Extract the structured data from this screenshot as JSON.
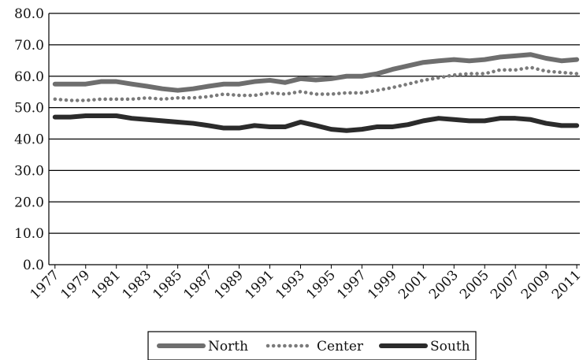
{
  "chart_data": {
    "type": "line",
    "x": [
      1977,
      1978,
      1979,
      1980,
      1981,
      1982,
      1983,
      1984,
      1985,
      1986,
      1987,
      1988,
      1989,
      1990,
      1991,
      1992,
      1993,
      1994,
      1995,
      1996,
      1997,
      1998,
      1999,
      2000,
      2001,
      2002,
      2003,
      2004,
      2005,
      2006,
      2007,
      2008,
      2009,
      2010,
      2011
    ],
    "series": [
      {
        "name": "North",
        "color": "#6e6e6e",
        "style": "solid",
        "values": [
          57.5,
          57.5,
          57.5,
          58.3,
          58.3,
          57.5,
          56.8,
          56,
          55.5,
          56,
          56.8,
          57.5,
          57.5,
          58.3,
          58.7,
          58,
          59.2,
          58.8,
          59.2,
          60,
          60,
          60.8,
          62.2,
          63.3,
          64.4,
          64.9,
          65.3,
          64.9,
          65.3,
          66.1,
          66.5,
          66.9,
          65.7,
          64.9,
          65.3
        ]
      },
      {
        "name": "Center",
        "color": "#7a7a7a",
        "style": "dotted",
        "values": [
          52.7,
          52.3,
          52.3,
          52.7,
          52.7,
          52.7,
          53.1,
          52.7,
          53.1,
          53.1,
          53.5,
          54.3,
          53.9,
          53.9,
          54.7,
          54.3,
          55.1,
          54.3,
          54.3,
          54.7,
          54.7,
          55.5,
          56.4,
          57.5,
          58.7,
          59.5,
          60.4,
          60.8,
          60.8,
          62,
          62,
          62.8,
          61.6,
          61.2,
          60.8
        ]
      },
      {
        "name": "South",
        "color": "#2b2b2b",
        "style": "solid",
        "values": [
          47,
          47,
          47.4,
          47.4,
          47.4,
          46.6,
          46.2,
          45.8,
          45.4,
          45,
          44.3,
          43.5,
          43.5,
          44.3,
          43.9,
          43.9,
          45.4,
          44.3,
          43.1,
          42.7,
          43.1,
          43.9,
          43.9,
          44.6,
          45.8,
          46.6,
          46.2,
          45.8,
          45.8,
          46.6,
          46.6,
          46.2,
          45,
          44.3,
          44.3
        ]
      }
    ],
    "xlim": [
      1976.6,
      2011.2
    ],
    "xticks": [
      1977,
      1979,
      1981,
      1983,
      1985,
      1987,
      1989,
      1991,
      1993,
      1995,
      1997,
      1999,
      2001,
      2003,
      2005,
      2007,
      2009,
      2011
    ],
    "ylim": [
      0,
      80
    ],
    "yticks": [
      {
        "value": 0,
        "label": "0.0"
      },
      {
        "value": 10,
        "label": "10.0"
      },
      {
        "value": 20,
        "label": "20.0"
      },
      {
        "value": 30,
        "label": "30.0"
      },
      {
        "value": 40,
        "label": "40.0"
      },
      {
        "value": 50,
        "label": "50.0"
      },
      {
        "value": 60,
        "label": "60.0"
      },
      {
        "value": 70,
        "label": "70.0"
      },
      {
        "value": 80,
        "label": "80.0"
      }
    ],
    "grid": true,
    "legend": "bottom"
  }
}
